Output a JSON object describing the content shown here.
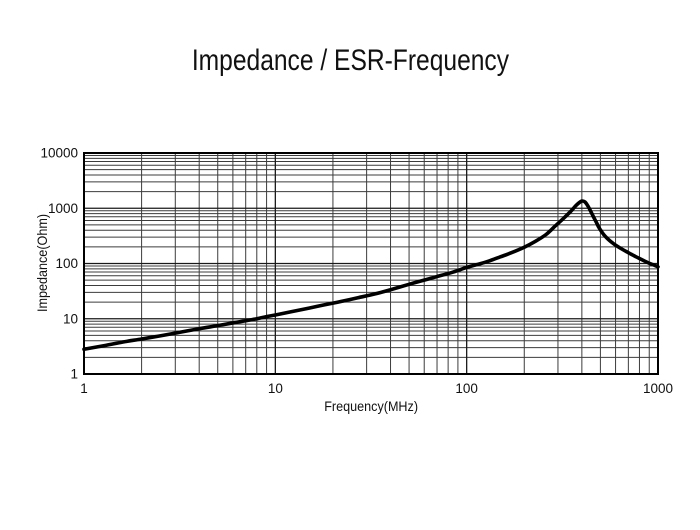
{
  "page": {
    "background": "#ffffff"
  },
  "colors": {
    "curve": "#000000",
    "grid_major": "#1a1a1a",
    "grid_minor": "#3c3c3c",
    "plot_border": "#000000",
    "text": "#111111"
  },
  "chart_data": {
    "type": "line",
    "title": "Impedance / ESR-Frequency",
    "xlabel": "Frequency(MHz)",
    "ylabel": "Impedance(Ohm)",
    "x_scale": "log",
    "y_scale": "log",
    "xlim": [
      1,
      1000
    ],
    "ylim": [
      1,
      10000
    ],
    "x_ticks": [
      "1",
      "10",
      "100",
      "1000"
    ],
    "y_ticks": [
      "1",
      "10",
      "100",
      "1000",
      "10000"
    ],
    "grid": "full log grid with minor lines (2-9) on both axes",
    "legend": "none",
    "series": [
      {
        "name": "Impedance",
        "color": "#000000",
        "points": [
          [
            1,
            2.8
          ],
          [
            1.3,
            3.3
          ],
          [
            1.6,
            3.8
          ],
          [
            2,
            4.3
          ],
          [
            2.5,
            4.9
          ],
          [
            3,
            5.5
          ],
          [
            4,
            6.6
          ],
          [
            5,
            7.5
          ],
          [
            6,
            8.4
          ],
          [
            7,
            9.2
          ],
          [
            8,
            10
          ],
          [
            9,
            10.9
          ],
          [
            10,
            11.7
          ],
          [
            12,
            13.3
          ],
          [
            15,
            15.6
          ],
          [
            18,
            17.8
          ],
          [
            22,
            20.5
          ],
          [
            27,
            24
          ],
          [
            33,
            28
          ],
          [
            40,
            33.5
          ],
          [
            50,
            42
          ],
          [
            60,
            50
          ],
          [
            70,
            58
          ],
          [
            85,
            70
          ],
          [
            100,
            85
          ],
          [
            115,
            97
          ],
          [
            130,
            110
          ],
          [
            150,
            132
          ],
          [
            170,
            155
          ],
          [
            200,
            197
          ],
          [
            230,
            255
          ],
          [
            260,
            335
          ],
          [
            290,
            475
          ],
          [
            320,
            650
          ],
          [
            350,
            880
          ],
          [
            370,
            1090
          ],
          [
            385,
            1240
          ],
          [
            400,
            1350
          ],
          [
            415,
            1300
          ],
          [
            430,
            1100
          ],
          [
            445,
            880
          ],
          [
            460,
            700
          ],
          [
            475,
            565
          ],
          [
            490,
            455
          ],
          [
            505,
            385
          ],
          [
            520,
            335
          ],
          [
            540,
            290
          ],
          [
            560,
            258
          ],
          [
            580,
            234
          ],
          [
            600,
            215
          ],
          [
            650,
            181
          ],
          [
            700,
            157
          ],
          [
            750,
            138
          ],
          [
            800,
            123
          ],
          [
            850,
            111
          ],
          [
            900,
            101
          ],
          [
            950,
            94
          ],
          [
            1000,
            87
          ]
        ]
      }
    ]
  }
}
